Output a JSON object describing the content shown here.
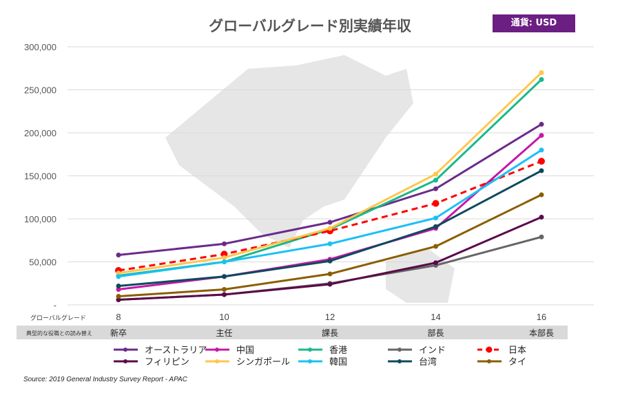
{
  "currency_badge": "通貨: USD",
  "source": "Source: 2019 General Industry Survey Report - APAC",
  "chart_data": {
    "type": "line",
    "title": "グローバルグレード別実績年収",
    "x_row_label": "グローバルグレード",
    "role_row_label": "典型的な役職との読み替え",
    "x": [
      8,
      10,
      12,
      14,
      16
    ],
    "roles": [
      "新卒",
      "主任",
      "課長",
      "部長",
      "本部長"
    ],
    "ylim": [
      0,
      300000
    ],
    "yticks": [
      "-",
      "50,000",
      "100,000",
      "150,000",
      "200,000",
      "250,000",
      "300,000"
    ],
    "grid": true,
    "legend_position": "bottom",
    "series": [
      {
        "name": "オーストラリア",
        "color": "#6b2a8a",
        "values": [
          58000,
          71000,
          96000,
          135000,
          210000
        ]
      },
      {
        "name": "中国",
        "color": "#c418a8",
        "values": [
          18000,
          33000,
          53000,
          89000,
          197000
        ]
      },
      {
        "name": "香港",
        "color": "#19b98a",
        "values": [
          34000,
          50000,
          88000,
          145000,
          262000
        ]
      },
      {
        "name": "インド",
        "color": "#666666",
        "values": [
          6000,
          12000,
          25000,
          46000,
          79000
        ]
      },
      {
        "name": "日本",
        "color": "#ff0000",
        "dashed": true,
        "values": [
          40000,
          59000,
          86000,
          118000,
          167000
        ]
      },
      {
        "name": "フィリピン",
        "color": "#5a0a4a",
        "values": [
          6000,
          12000,
          24000,
          49000,
          102000
        ]
      },
      {
        "name": "シンガポール",
        "color": "#ffc64b",
        "values": [
          37000,
          55000,
          89000,
          152000,
          270000
        ]
      },
      {
        "name": "韓国",
        "color": "#1ac0f5",
        "values": [
          33000,
          50000,
          71000,
          101000,
          180000
        ]
      },
      {
        "name": "台湾",
        "color": "#0d4a5e",
        "values": [
          22000,
          33000,
          51000,
          91000,
          156000
        ]
      },
      {
        "name": "タイ",
        "color": "#8a5e00",
        "values": [
          10000,
          18000,
          36000,
          68000,
          128000
        ]
      }
    ]
  }
}
